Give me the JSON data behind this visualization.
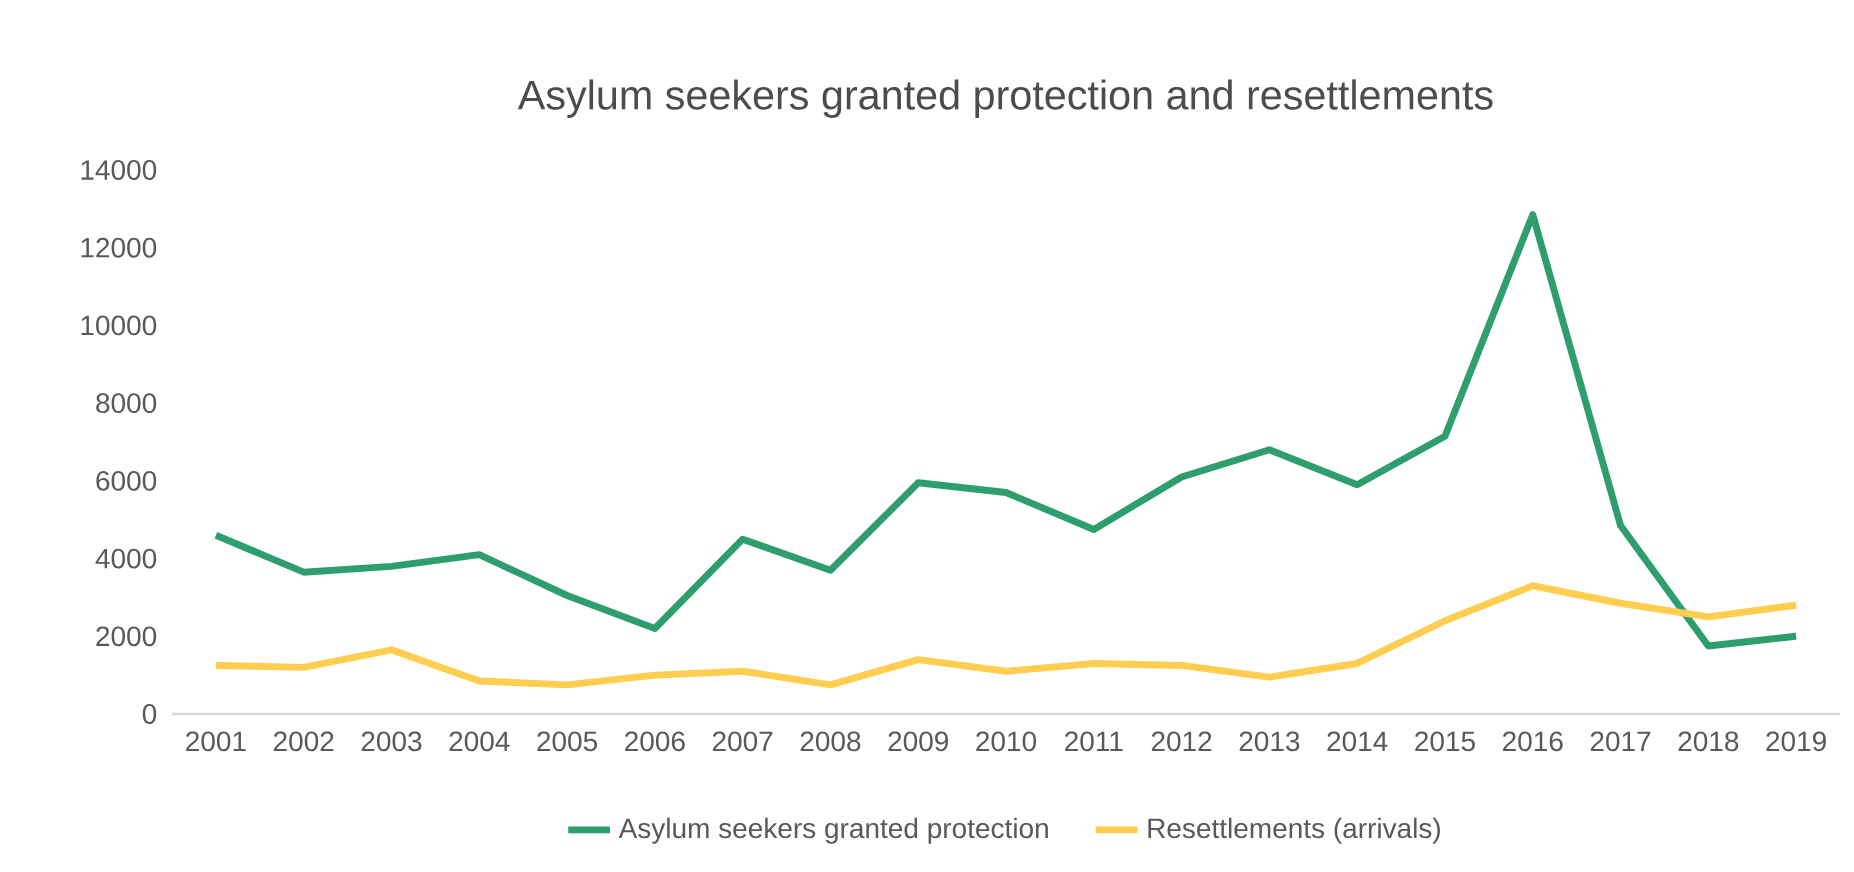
{
  "chart_data": {
    "type": "line",
    "title": "Asylum seekers granted protection and resettlements",
    "categories": [
      "2001",
      "2002",
      "2003",
      "2004",
      "2005",
      "2006",
      "2007",
      "2008",
      "2009",
      "2010",
      "2011",
      "2012",
      "2013",
      "2014",
      "2015",
      "2016",
      "2017",
      "2018",
      "2019"
    ],
    "series": [
      {
        "name": "Asylum seekers granted protection",
        "color": "#2e9e6e",
        "values": [
          4600,
          3650,
          3800,
          4100,
          3050,
          2200,
          4500,
          3700,
          5950,
          5700,
          4750,
          6100,
          6800,
          5900,
          7150,
          12850,
          4850,
          1750,
          2000
        ]
      },
      {
        "name": "Resettlements (arrivals)",
        "color": "#ffcd4f",
        "values": [
          1250,
          1200,
          1650,
          850,
          750,
          1000,
          1100,
          750,
          1400,
          1100,
          1300,
          1250,
          950,
          1300,
          2400,
          3300,
          2850,
          2500,
          2800
        ]
      }
    ],
    "ylim": [
      0,
      14000
    ],
    "yticks": [
      0,
      2000,
      4000,
      6000,
      8000,
      10000,
      12000,
      14000
    ],
    "grid": false,
    "legend": "bottom",
    "marker": "none",
    "line_style": "solid"
  }
}
